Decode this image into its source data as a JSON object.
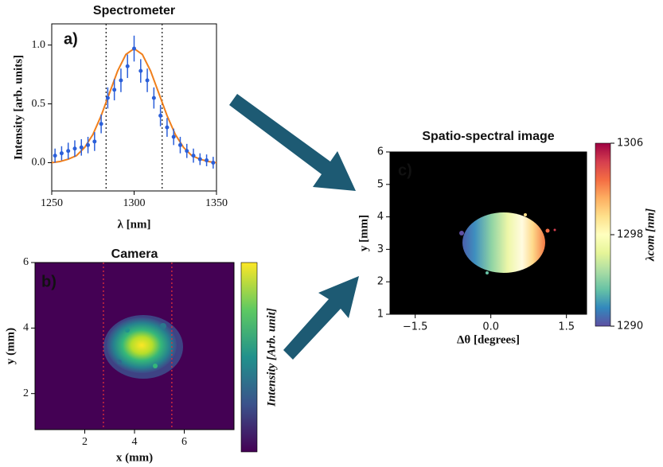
{
  "chart_data": [
    {
      "type": "scatter",
      "title": "Spectrometer",
      "panel_label": "a)",
      "x_label": "λ [nm]",
      "y_label": "Intensity [arb. units]",
      "x": [
        1252,
        1256,
        1260,
        1264,
        1268,
        1272,
        1276,
        1280,
        1284,
        1288,
        1292,
        1296,
        1300,
        1304,
        1308,
        1312,
        1316,
        1320,
        1324,
        1328,
        1332,
        1336,
        1340,
        1344,
        1348
      ],
      "values": [
        0.06,
        0.08,
        0.1,
        0.12,
        0.13,
        0.15,
        0.18,
        0.33,
        0.55,
        0.62,
        0.7,
        0.82,
        0.97,
        0.78,
        0.7,
        0.55,
        0.4,
        0.3,
        0.22,
        0.15,
        0.1,
        0.06,
        0.03,
        0.02,
        0.0
      ],
      "errors": [
        0.06,
        0.06,
        0.07,
        0.07,
        0.07,
        0.07,
        0.08,
        0.08,
        0.09,
        0.09,
        0.1,
        0.1,
        0.11,
        0.1,
        0.1,
        0.09,
        0.09,
        0.08,
        0.07,
        0.07,
        0.06,
        0.06,
        0.05,
        0.05,
        0.05
      ],
      "color": "#2b5fd9",
      "fit": {
        "x": [
          1250,
          1255,
          1260,
          1265,
          1270,
          1275,
          1280,
          1285,
          1290,
          1295,
          1300,
          1305,
          1310,
          1315,
          1320,
          1325,
          1330,
          1335,
          1340,
          1345,
          1350
        ],
        "values": [
          0.0,
          0.01,
          0.03,
          0.06,
          0.13,
          0.24,
          0.4,
          0.59,
          0.78,
          0.92,
          0.97,
          0.92,
          0.78,
          0.59,
          0.4,
          0.24,
          0.13,
          0.06,
          0.03,
          0.01,
          0.0
        ],
        "color": "#f07f1c"
      },
      "vlines": [
        1283,
        1317
      ],
      "vline_color": "#222222",
      "xlim": [
        1250,
        1350
      ],
      "xticks": [
        1250,
        1300,
        1350
      ],
      "ylim": [
        -0.24,
        1.18
      ],
      "yticks": [
        {
          "value": 0,
          "label": "0.0"
        },
        {
          "value": 0.5,
          "label": "0.5"
        },
        {
          "value": 1,
          "label": "1.0"
        }
      ]
    },
    {
      "type": "heatmap",
      "title": "Camera",
      "panel_label": "b)",
      "x_label": "x (mm)",
      "y_label": "y (mm)",
      "colorbar_label": "Intensity [Arb. unit]",
      "background": "#440154",
      "vlines": [
        2.75,
        5.5
      ],
      "vline_color": "#e0303a",
      "xlim": [
        0,
        8
      ],
      "xticks": [
        2,
        4,
        6
      ],
      "ylim": [
        0.9,
        6
      ],
      "yticks": [
        2,
        4,
        6
      ]
    },
    {
      "type": "heatmap",
      "title": "Spatio-spectral image",
      "panel_label": "c)",
      "x_label": "Δθ [degrees]",
      "y_label": "y [mm]",
      "colorbar_label": "λcom [nm]",
      "background": "#000000",
      "xlim": [
        -2.0,
        1.9
      ],
      "xticks": [
        {
          "value": -1.5,
          "label": "−1.5"
        },
        {
          "value": 0,
          "label": "0.0"
        },
        {
          "value": 1.5,
          "label": "1.5"
        }
      ],
      "ylim": [
        1,
        6
      ],
      "yticks": [
        1,
        2,
        3,
        4,
        5,
        6
      ],
      "clim": [
        1290,
        1306
      ],
      "cticks": [
        1290,
        1298,
        1306
      ]
    }
  ]
}
